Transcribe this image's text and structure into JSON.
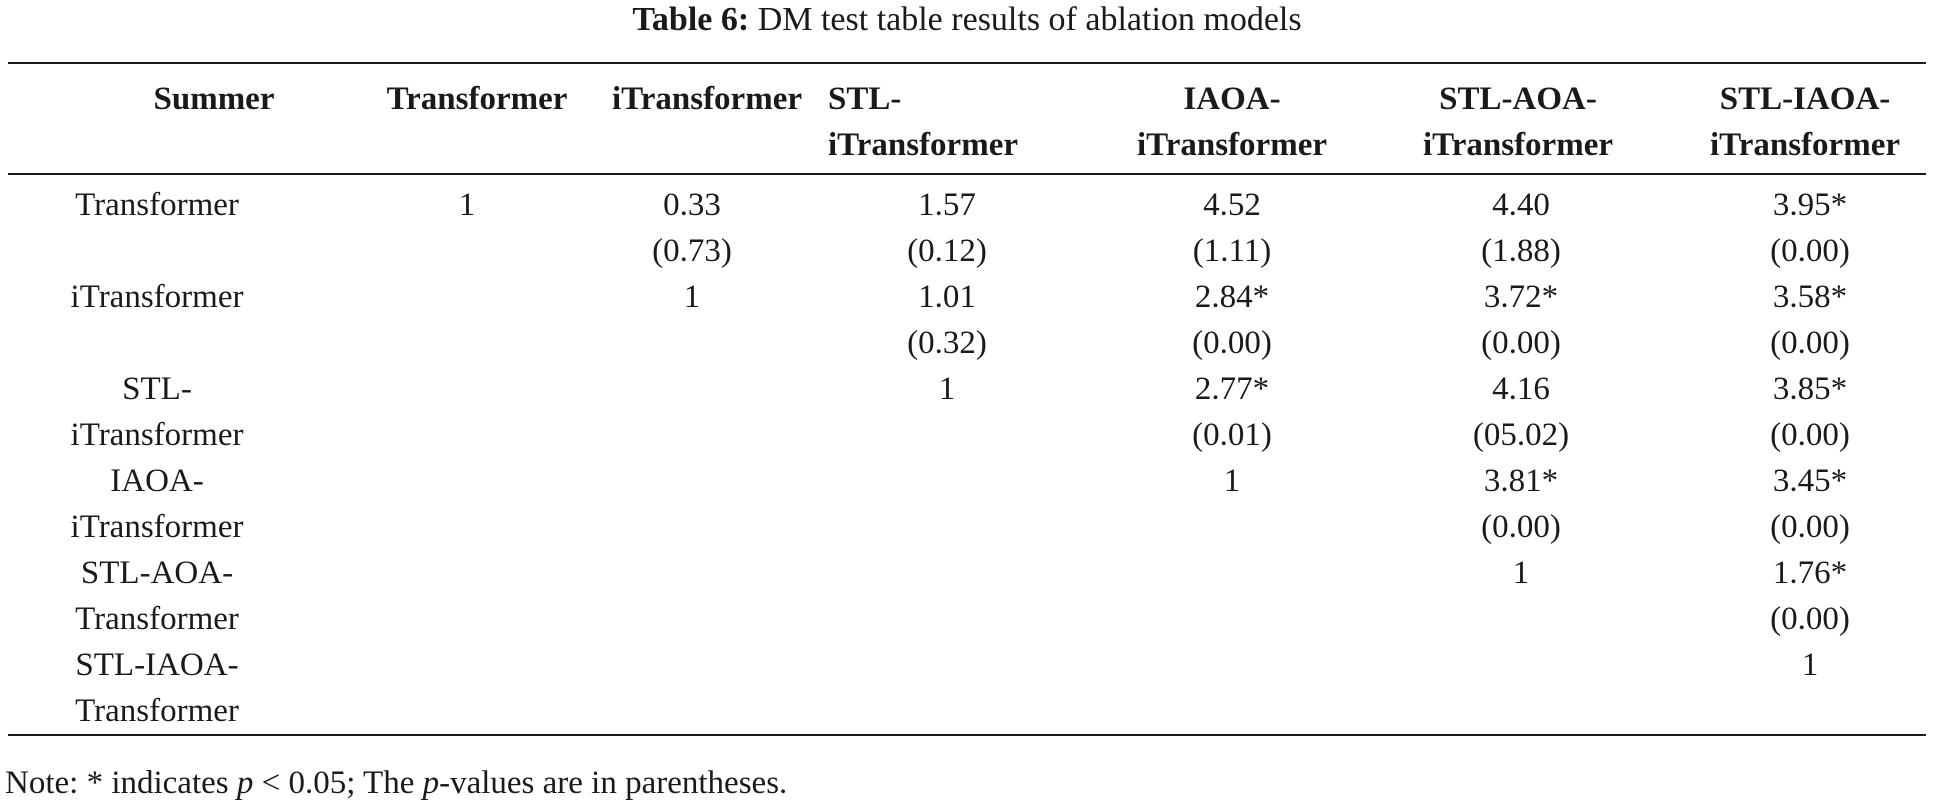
{
  "caption": {
    "label": "Table 6:",
    "text": "DM test table results of ablation models"
  },
  "table": {
    "corner_header": "Summer",
    "column_headers": [
      {
        "line1": "Transformer",
        "line2": ""
      },
      {
        "line1": "iTransformer",
        "line2": ""
      },
      {
        "line1": "STL-",
        "line2": "iTransformer"
      },
      {
        "line1": "IAOA-",
        "line2": "iTransformer"
      },
      {
        "line1": "STL-AOA-",
        "line2": "iTransformer"
      },
      {
        "line1": "STL-IAOA-",
        "line2": "iTransformer"
      }
    ],
    "row_headers": [
      {
        "line1": "Transformer",
        "line2": ""
      },
      {
        "line1": "iTransformer",
        "line2": ""
      },
      {
        "line1": "STL-",
        "line2": "iTransformer"
      },
      {
        "line1": "IAOA-",
        "line2": "iTransformer"
      },
      {
        "line1": "STL-AOA-",
        "line2": "Transformer"
      },
      {
        "line1": "STL-IAOA-",
        "line2": "Transformer"
      }
    ],
    "rows": [
      [
        {
          "value": "1",
          "p": ""
        },
        {
          "value": "0.33",
          "p": "(0.73)"
        },
        {
          "value": "1.57",
          "p": "(0.12)"
        },
        {
          "value": "4.52",
          "p": "(1.11)"
        },
        {
          "value": "4.40",
          "p": "(1.88)"
        },
        {
          "value": "3.95*",
          "p": "(0.00)"
        }
      ],
      [
        {
          "value": "",
          "p": ""
        },
        {
          "value": "1",
          "p": ""
        },
        {
          "value": "1.01",
          "p": "(0.32)"
        },
        {
          "value": "2.84*",
          "p": "(0.00)"
        },
        {
          "value": "3.72*",
          "p": "(0.00)"
        },
        {
          "value": "3.58*",
          "p": "(0.00)"
        }
      ],
      [
        {
          "value": "",
          "p": ""
        },
        {
          "value": "",
          "p": ""
        },
        {
          "value": "1",
          "p": ""
        },
        {
          "value": "2.77*",
          "p": "(0.01)"
        },
        {
          "value": "4.16",
          "p": "(05.02)"
        },
        {
          "value": "3.85*",
          "p": "(0.00)"
        }
      ],
      [
        {
          "value": "",
          "p": ""
        },
        {
          "value": "",
          "p": ""
        },
        {
          "value": "",
          "p": ""
        },
        {
          "value": "1",
          "p": ""
        },
        {
          "value": "3.81*",
          "p": "(0.00)"
        },
        {
          "value": "3.45*",
          "p": "(0.00)"
        }
      ],
      [
        {
          "value": "",
          "p": ""
        },
        {
          "value": "",
          "p": ""
        },
        {
          "value": "",
          "p": ""
        },
        {
          "value": "",
          "p": ""
        },
        {
          "value": "1",
          "p": ""
        },
        {
          "value": "1.76*",
          "p": "(0.00)"
        }
      ],
      [
        {
          "value": "",
          "p": ""
        },
        {
          "value": "",
          "p": ""
        },
        {
          "value": "",
          "p": ""
        },
        {
          "value": "",
          "p": ""
        },
        {
          "value": "",
          "p": ""
        },
        {
          "value": "1",
          "p": ""
        }
      ]
    ]
  },
  "note": {
    "prefix": "Note: * indicates ",
    "p_symbol": "p",
    "middle": " < 0.05; The ",
    "p_symbol_2": "p",
    "suffix": "-values are in parentheses."
  }
}
